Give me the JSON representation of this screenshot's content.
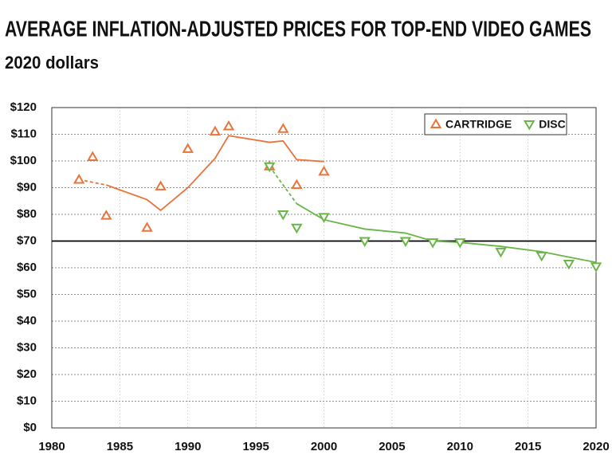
{
  "chart_data": {
    "type": "scatter",
    "title": "AVERAGE INFLATION-ADJUSTED PRICES FOR TOP-END VIDEO GAMES",
    "subtitle": "2020 dollars",
    "xlim": [
      1980,
      2020
    ],
    "xticks": [
      1980,
      1985,
      1990,
      1995,
      2000,
      2005,
      2010,
      2015,
      2020
    ],
    "ylim": [
      0,
      120
    ],
    "yticks": [
      {
        "value": 0,
        "label": "$0"
      },
      {
        "value": 10,
        "label": "$10"
      },
      {
        "value": 20,
        "label": "$20"
      },
      {
        "value": 30,
        "label": "$30"
      },
      {
        "value": 40,
        "label": "$40"
      },
      {
        "value": 50,
        "label": "$50"
      },
      {
        "value": 60,
        "label": "$60"
      },
      {
        "value": 70,
        "label": "$70"
      },
      {
        "value": 80,
        "label": "$80"
      },
      {
        "value": 90,
        "label": "$90"
      },
      {
        "value": 100,
        "label": "$100"
      },
      {
        "value": 110,
        "label": "$110"
      },
      {
        "value": 120,
        "label": "$120"
      }
    ],
    "grid": true,
    "reference_line": 70,
    "legend": "upper right",
    "series": [
      {
        "name": "CARTRIDGE",
        "color": "#e8743b",
        "marker": "triangle-up",
        "x": [
          1982,
          1983,
          1984,
          1987,
          1988,
          1990,
          1992,
          1993,
          1996,
          1997,
          1998,
          2000
        ],
        "values": [
          93,
          101.5,
          79.5,
          75,
          90.5,
          104.5,
          111,
          113,
          98,
          112,
          91,
          96
        ],
        "trend_lines": [
          {
            "style": "dashed",
            "x": [
              1982,
              1984
            ],
            "values": [
              93,
              91
            ]
          },
          {
            "style": "solid",
            "x": [
              1984,
              1987,
              1988,
              1990,
              1992,
              1993,
              1996,
              1997,
              1998,
              2000
            ],
            "values": [
              91,
              85.5,
              81.5,
              90,
              101,
              109.5,
              107,
              107.5,
              100.5,
              99.8
            ]
          }
        ]
      },
      {
        "name": "DISC",
        "color": "#6ab547",
        "marker": "triangle-down",
        "x": [
          1996,
          1997,
          1998,
          2000,
          2003,
          2006,
          2008,
          2010,
          2013,
          2016,
          2018,
          2020
        ],
        "values": [
          98,
          80,
          75,
          79,
          70,
          70,
          69.5,
          69.5,
          66,
          64.5,
          61.5,
          60.5
        ],
        "trend_lines": [
          {
            "style": "dashed",
            "x": [
              1996,
              1998
            ],
            "values": [
              98,
              84
            ]
          },
          {
            "style": "solid",
            "x": [
              1998,
              2000,
              2003,
              2006,
              2008,
              2010,
              2013,
              2016,
              2018,
              2020
            ],
            "values": [
              84,
              78,
              74.5,
              73,
              70,
              69.5,
              68,
              66,
              64,
              62
            ]
          }
        ]
      }
    ]
  }
}
